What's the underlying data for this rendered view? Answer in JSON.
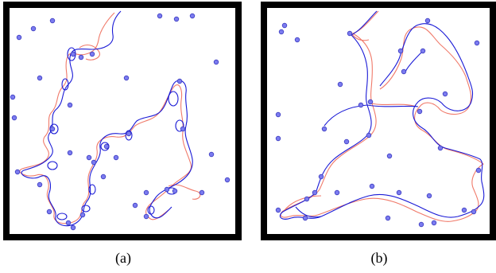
{
  "captions": {
    "a": "(a)",
    "b": "(b)"
  },
  "colors": {
    "frame": "#000000",
    "background": "#ffffff",
    "dot_fill": "#7b7bef",
    "dot_stroke": "#3a3ac0",
    "path_primary": "#1a1ad6",
    "path_secondary": "#f07a6a"
  }
}
